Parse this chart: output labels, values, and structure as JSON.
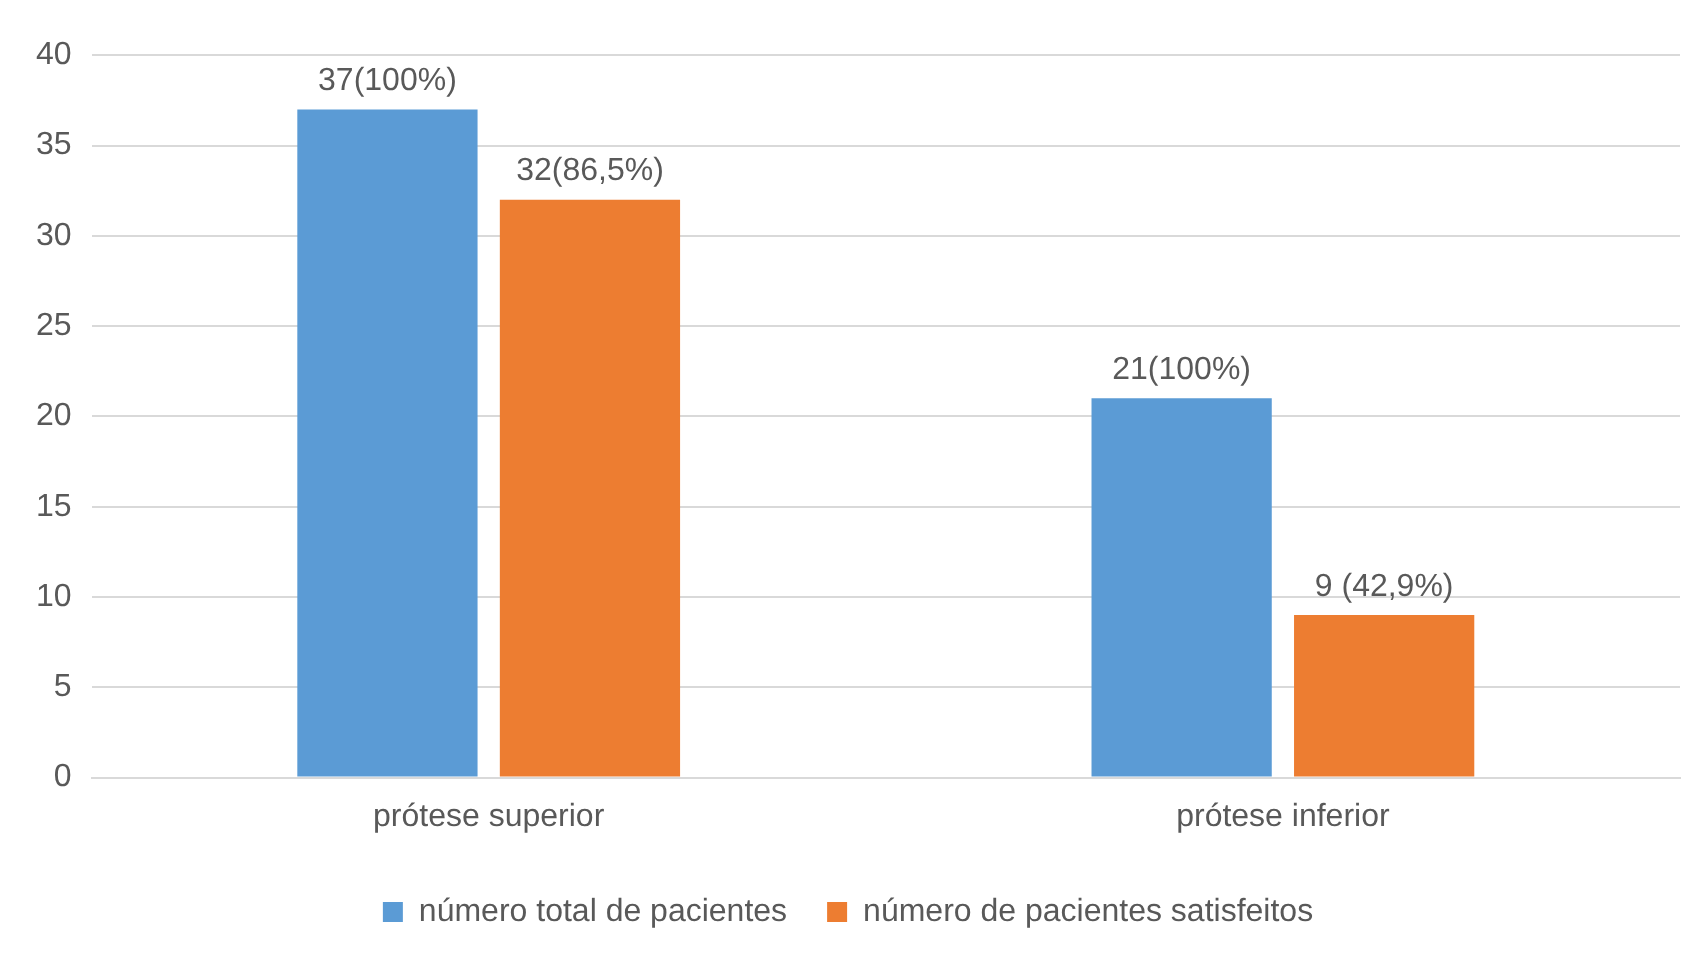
{
  "chart_data": {
    "type": "bar",
    "categories": [
      "prótese superior",
      "prótese inferior"
    ],
    "series": [
      {
        "name": "número total de pacientes",
        "color": "#5b9bd5",
        "values": [
          37,
          21
        ],
        "value_labels": [
          "37(100%)",
          "21(100%)"
        ]
      },
      {
        "name": "número de pacientes satisfeitos",
        "color": "#ed7d31",
        "values": [
          32,
          9
        ],
        "value_labels": [
          "32(86,5%)",
          "9 (42,9%)"
        ]
      }
    ],
    "ylim": [
      0,
      40
    ],
    "yticks": [
      0,
      5,
      10,
      15,
      20,
      25,
      30,
      35,
      40
    ],
    "grid": "y",
    "legend": "bottom"
  }
}
